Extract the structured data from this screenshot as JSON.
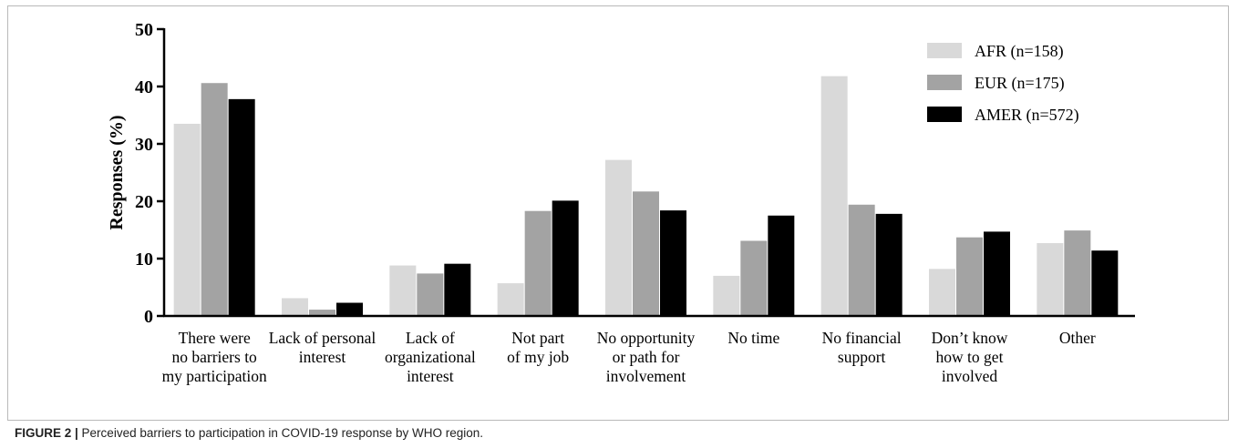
{
  "caption": {
    "label": "FIGURE 2 |",
    "text": " Perceived barriers to participation in COVID-19 response by WHO region."
  },
  "chart_data": {
    "type": "bar",
    "title": "",
    "xlabel": "",
    "ylabel": "Responses (%)",
    "ylim": [
      0,
      50
    ],
    "yticks": [
      0,
      10,
      20,
      30,
      40,
      50
    ],
    "grid": false,
    "legend_position": "top-right",
    "categories": [
      [
        "There were",
        "no barriers to",
        "my participation"
      ],
      [
        "Lack of personal",
        "interest"
      ],
      [
        "Lack of",
        "organizational",
        "interest"
      ],
      [
        "Not part",
        "of my job"
      ],
      [
        "No opportunity",
        "or path for",
        "involvement"
      ],
      [
        "No time"
      ],
      [
        "No financial",
        "support"
      ],
      [
        "Don’t know",
        "how to get",
        "involved"
      ],
      [
        "Other"
      ]
    ],
    "series": [
      {
        "name": "AFR (n=158)",
        "color": "#d9d9d9",
        "values": [
          33.5,
          3.1,
          8.8,
          5.7,
          27.2,
          7.0,
          41.8,
          8.2,
          12.7
        ]
      },
      {
        "name": "EUR (n=175)",
        "color": "#a3a3a3",
        "values": [
          40.6,
          1.1,
          7.4,
          18.3,
          21.7,
          13.1,
          19.4,
          13.7,
          14.9
        ]
      },
      {
        "name": "AMER (n=572)",
        "color": "#000000",
        "values": [
          37.8,
          2.3,
          9.1,
          20.1,
          18.4,
          17.5,
          17.8,
          14.7,
          11.4
        ]
      }
    ]
  }
}
